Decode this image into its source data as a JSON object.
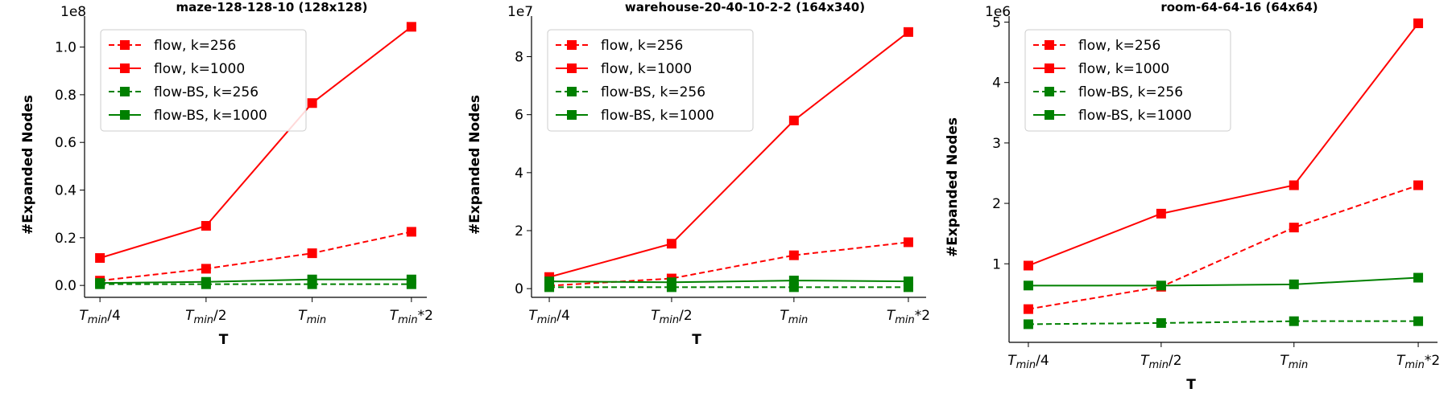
{
  "figure": {
    "background": "#ffffff"
  },
  "chart_data": [
    {
      "type": "line",
      "title": "maze-128-128-10 (128x128)",
      "xlabel": "T",
      "ylabel": "#Expanded Nodes",
      "offset_text": "1e8",
      "categories": [
        "T_min/4",
        "T_min/2",
        "T_min",
        "T_min*2"
      ],
      "ylim": [
        -0.05,
        1.13
      ],
      "yticks": [
        0.0,
        0.2,
        0.4,
        0.6,
        0.8,
        1.0
      ],
      "ytick_labels": [
        "0.0",
        "0.2",
        "0.4",
        "0.6",
        "0.8",
        "1.0"
      ],
      "legend_position": "top-left",
      "series": [
        {
          "name": "flow,  k=256",
          "color": "#ff0000",
          "dashed": true,
          "values": [
            0.02,
            0.07,
            0.135,
            0.225
          ]
        },
        {
          "name": "flow,  k=1000",
          "color": "#ff0000",
          "dashed": false,
          "values": [
            0.115,
            0.25,
            0.765,
            1.085
          ]
        },
        {
          "name": "flow-BS,  k=256",
          "color": "#008000",
          "dashed": true,
          "values": [
            0.005,
            0.005,
            0.005,
            0.005
          ]
        },
        {
          "name": "flow-BS,  k=1000",
          "color": "#008000",
          "dashed": false,
          "values": [
            0.01,
            0.015,
            0.025,
            0.025
          ]
        }
      ]
    },
    {
      "type": "line",
      "title": "warehouse-20-40-10-2-2 (164x340)",
      "xlabel": "T",
      "ylabel": "#Expanded Nodes",
      "offset_text": "1e7",
      "categories": [
        "T_min/4",
        "T_min/2",
        "T_min",
        "T_min*2"
      ],
      "ylim": [
        -0.3,
        9.4
      ],
      "yticks": [
        0,
        2,
        4,
        6,
        8
      ],
      "ytick_labels": [
        "0",
        "2",
        "4",
        "6",
        "8"
      ],
      "legend_position": "top-left",
      "series": [
        {
          "name": "flow,  k=256",
          "color": "#ff0000",
          "dashed": true,
          "values": [
            0.1,
            0.35,
            1.15,
            1.6
          ]
        },
        {
          "name": "flow,  k=1000",
          "color": "#ff0000",
          "dashed": false,
          "values": [
            0.4,
            1.55,
            5.8,
            8.85
          ]
        },
        {
          "name": "flow-BS,  k=256",
          "color": "#008000",
          "dashed": true,
          "values": [
            0.05,
            0.05,
            0.05,
            0.05
          ]
        },
        {
          "name": "flow-BS,  k=1000",
          "color": "#008000",
          "dashed": false,
          "values": [
            0.25,
            0.22,
            0.28,
            0.25
          ]
        }
      ]
    },
    {
      "type": "line",
      "title": "room-64-64-16 (64x64)",
      "xlabel": "T",
      "ylabel": "#Expanded Nodes",
      "offset_text": "1e6",
      "categories": [
        "T_min/4",
        "T_min/2",
        "T_min",
        "T_min*2"
      ],
      "ylim": [
        -0.3,
        5.1
      ],
      "yticks": [
        1,
        2,
        3,
        4,
        5
      ],
      "ytick_labels": [
        "1",
        "2",
        "3",
        "4",
        "5"
      ],
      "legend_position": "top-left",
      "series": [
        {
          "name": "flow,  k=256",
          "color": "#ff0000",
          "dashed": true,
          "values": [
            0.25,
            0.62,
            1.6,
            2.3
          ]
        },
        {
          "name": "flow,  k=1000",
          "color": "#ff0000",
          "dashed": false,
          "values": [
            0.97,
            1.83,
            2.3,
            4.98
          ]
        },
        {
          "name": "flow-BS,  k=256",
          "color": "#008000",
          "dashed": true,
          "values": [
            0.0,
            0.02,
            0.05,
            0.05
          ]
        },
        {
          "name": "flow-BS,  k=1000",
          "color": "#008000",
          "dashed": false,
          "values": [
            0.64,
            0.64,
            0.66,
            0.77
          ]
        }
      ]
    }
  ]
}
